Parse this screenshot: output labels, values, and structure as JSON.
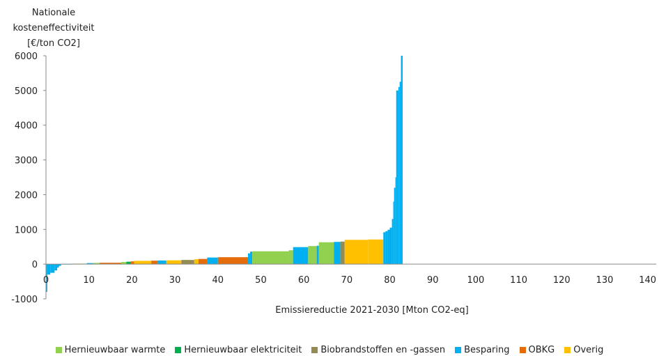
{
  "chart_data": {
    "type": "bar",
    "subtype": "cost-curve (variable-width bars)",
    "ylabel_lines": [
      "Nationale",
      "kosteneffectiviteit",
      "[€/ton CO2]"
    ],
    "xlabel": "Emissiereductie 2021-2030 [Mton CO2-eq]",
    "xlim": [
      0,
      142
    ],
    "ylim": [
      -1000,
      6000
    ],
    "xticks": [
      0,
      10,
      20,
      30,
      40,
      50,
      60,
      70,
      80,
      90,
      100,
      110,
      120,
      130,
      140
    ],
    "yticks": [
      6000,
      5000,
      4000,
      3000,
      2000,
      1000,
      0,
      -1000
    ],
    "grid": false,
    "legend_position": "bottom",
    "categories": [
      {
        "name": "Hernieuwbaar warmte",
        "color": "#92D050"
      },
      {
        "name": "Hernieuwbaar elektriciteit",
        "color": "#00B050"
      },
      {
        "name": "Biobrandstoffen en -gassen",
        "color": "#948A54"
      },
      {
        "name": "Besparing",
        "color": "#00B0F0"
      },
      {
        "name": "OBKG",
        "color": "#E46C0A"
      },
      {
        "name": "Overig",
        "color": "#FFC000"
      }
    ],
    "segments": [
      {
        "x0": 0.0,
        "x1": 0.3,
        "y": -800,
        "cat": "Besparing"
      },
      {
        "x0": 0.3,
        "x1": 1.0,
        "y": -300,
        "cat": "Besparing"
      },
      {
        "x0": 1.0,
        "x1": 2.0,
        "y": -250,
        "cat": "Besparing"
      },
      {
        "x0": 2.0,
        "x1": 2.6,
        "y": -180,
        "cat": "Besparing"
      },
      {
        "x0": 2.6,
        "x1": 3.0,
        "y": -100,
        "cat": "Besparing"
      },
      {
        "x0": 3.0,
        "x1": 3.5,
        "y": -50,
        "cat": "Besparing"
      },
      {
        "x0": 3.5,
        "x1": 6.0,
        "y": 5,
        "cat": "Besparing"
      },
      {
        "x0": 6.0,
        "x1": 9.5,
        "y": 15,
        "cat": "Hernieuwbaar warmte"
      },
      {
        "x0": 9.5,
        "x1": 11.0,
        "y": 30,
        "cat": "Besparing"
      },
      {
        "x0": 11.0,
        "x1": 12.5,
        "y": 35,
        "cat": "Hernieuwbaar warmte"
      },
      {
        "x0": 12.5,
        "x1": 17.5,
        "y": 40,
        "cat": "OBKG"
      },
      {
        "x0": 17.5,
        "x1": 18.7,
        "y": 60,
        "cat": "Hernieuwbaar warmte"
      },
      {
        "x0": 18.7,
        "x1": 19.7,
        "y": 70,
        "cat": "Hernieuwbaar elektriciteit"
      },
      {
        "x0": 19.7,
        "x1": 20.5,
        "y": 80,
        "cat": "OBKG"
      },
      {
        "x0": 20.5,
        "x1": 24.5,
        "y": 95,
        "cat": "Overig"
      },
      {
        "x0": 24.5,
        "x1": 26.0,
        "y": 100,
        "cat": "OBKG"
      },
      {
        "x0": 26.0,
        "x1": 28.0,
        "y": 105,
        "cat": "Besparing"
      },
      {
        "x0": 28.0,
        "x1": 31.5,
        "y": 110,
        "cat": "Overig"
      },
      {
        "x0": 31.5,
        "x1": 34.5,
        "y": 120,
        "cat": "Biobrandstoffen en -gassen"
      },
      {
        "x0": 34.5,
        "x1": 35.5,
        "y": 140,
        "cat": "Overig"
      },
      {
        "x0": 35.5,
        "x1": 37.5,
        "y": 150,
        "cat": "OBKG"
      },
      {
        "x0": 37.5,
        "x1": 40.0,
        "y": 190,
        "cat": "Besparing"
      },
      {
        "x0": 40.0,
        "x1": 47.0,
        "y": 200,
        "cat": "OBKG"
      },
      {
        "x0": 47.0,
        "x1": 47.5,
        "y": 310,
        "cat": "Besparing"
      },
      {
        "x0": 47.5,
        "x1": 48.0,
        "y": 360,
        "cat": "Besparing"
      },
      {
        "x0": 48.0,
        "x1": 56.5,
        "y": 370,
        "cat": "Hernieuwbaar warmte"
      },
      {
        "x0": 56.5,
        "x1": 57.5,
        "y": 400,
        "cat": "Hernieuwbaar warmte"
      },
      {
        "x0": 57.5,
        "x1": 61.0,
        "y": 490,
        "cat": "Besparing"
      },
      {
        "x0": 61.0,
        "x1": 63.0,
        "y": 520,
        "cat": "Hernieuwbaar warmte"
      },
      {
        "x0": 63.0,
        "x1": 63.5,
        "y": 530,
        "cat": "Besparing"
      },
      {
        "x0": 63.5,
        "x1": 67.0,
        "y": 630,
        "cat": "Hernieuwbaar warmte"
      },
      {
        "x0": 67.0,
        "x1": 68.5,
        "y": 640,
        "cat": "Besparing"
      },
      {
        "x0": 68.5,
        "x1": 69.5,
        "y": 650,
        "cat": "Biobrandstoffen en -gassen"
      },
      {
        "x0": 69.5,
        "x1": 75.0,
        "y": 700,
        "cat": "Overig"
      },
      {
        "x0": 75.0,
        "x1": 78.5,
        "y": 710,
        "cat": "Overig"
      },
      {
        "x0": 78.5,
        "x1": 79.0,
        "y": 920,
        "cat": "Besparing"
      },
      {
        "x0": 79.0,
        "x1": 79.5,
        "y": 950,
        "cat": "Besparing"
      },
      {
        "x0": 79.5,
        "x1": 80.0,
        "y": 990,
        "cat": "Besparing"
      },
      {
        "x0": 80.0,
        "x1": 80.5,
        "y": 1050,
        "cat": "Besparing"
      },
      {
        "x0": 80.5,
        "x1": 80.8,
        "y": 1300,
        "cat": "Besparing"
      },
      {
        "x0": 80.8,
        "x1": 81.0,
        "y": 1800,
        "cat": "Besparing"
      },
      {
        "x0": 81.0,
        "x1": 81.3,
        "y": 2200,
        "cat": "Besparing"
      },
      {
        "x0": 81.3,
        "x1": 81.5,
        "y": 2500,
        "cat": "Besparing"
      },
      {
        "x0": 81.5,
        "x1": 82.0,
        "y": 5000,
        "cat": "Besparing"
      },
      {
        "x0": 82.0,
        "x1": 82.3,
        "y": 5100,
        "cat": "Besparing"
      },
      {
        "x0": 82.3,
        "x1": 82.6,
        "y": 5250,
        "cat": "Besparing"
      },
      {
        "x0": 82.6,
        "x1": 83.0,
        "y": 6000,
        "cat": "Besparing"
      }
    ]
  }
}
